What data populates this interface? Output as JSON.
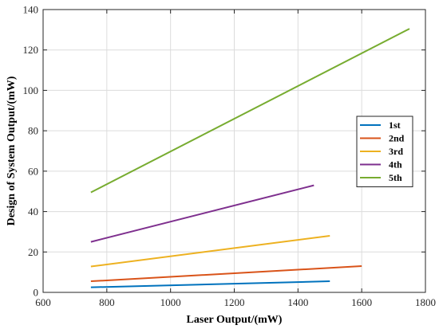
{
  "chart_data": {
    "type": "line",
    "xlabel": "Laser Output/(mW)",
    "ylabel": "Design of System Output/(mW)",
    "xlim": [
      600,
      1800
    ],
    "ylim": [
      0,
      140
    ],
    "xticks": [
      600,
      800,
      1000,
      1200,
      1400,
      1600,
      1800
    ],
    "yticks": [
      0,
      20,
      40,
      60,
      80,
      100,
      120,
      140
    ],
    "grid": true,
    "legend_position": "right",
    "series": [
      {
        "name": "1st",
        "color": "#0072BD",
        "x": [
          750,
          1500
        ],
        "y": [
          2.5,
          5.5
        ]
      },
      {
        "name": "2nd",
        "color": "#D95319",
        "x": [
          750,
          1600
        ],
        "y": [
          5.5,
          13
        ]
      },
      {
        "name": "3rd",
        "color": "#EDB120",
        "x": [
          750,
          1500
        ],
        "y": [
          12.8,
          28
        ]
      },
      {
        "name": "4th",
        "color": "#7E2F8E",
        "x": [
          750,
          1450
        ],
        "y": [
          25,
          53
        ]
      },
      {
        "name": "5th",
        "color": "#77AC30",
        "x": [
          750,
          1750
        ],
        "y": [
          49.5,
          130.5
        ]
      }
    ]
  }
}
